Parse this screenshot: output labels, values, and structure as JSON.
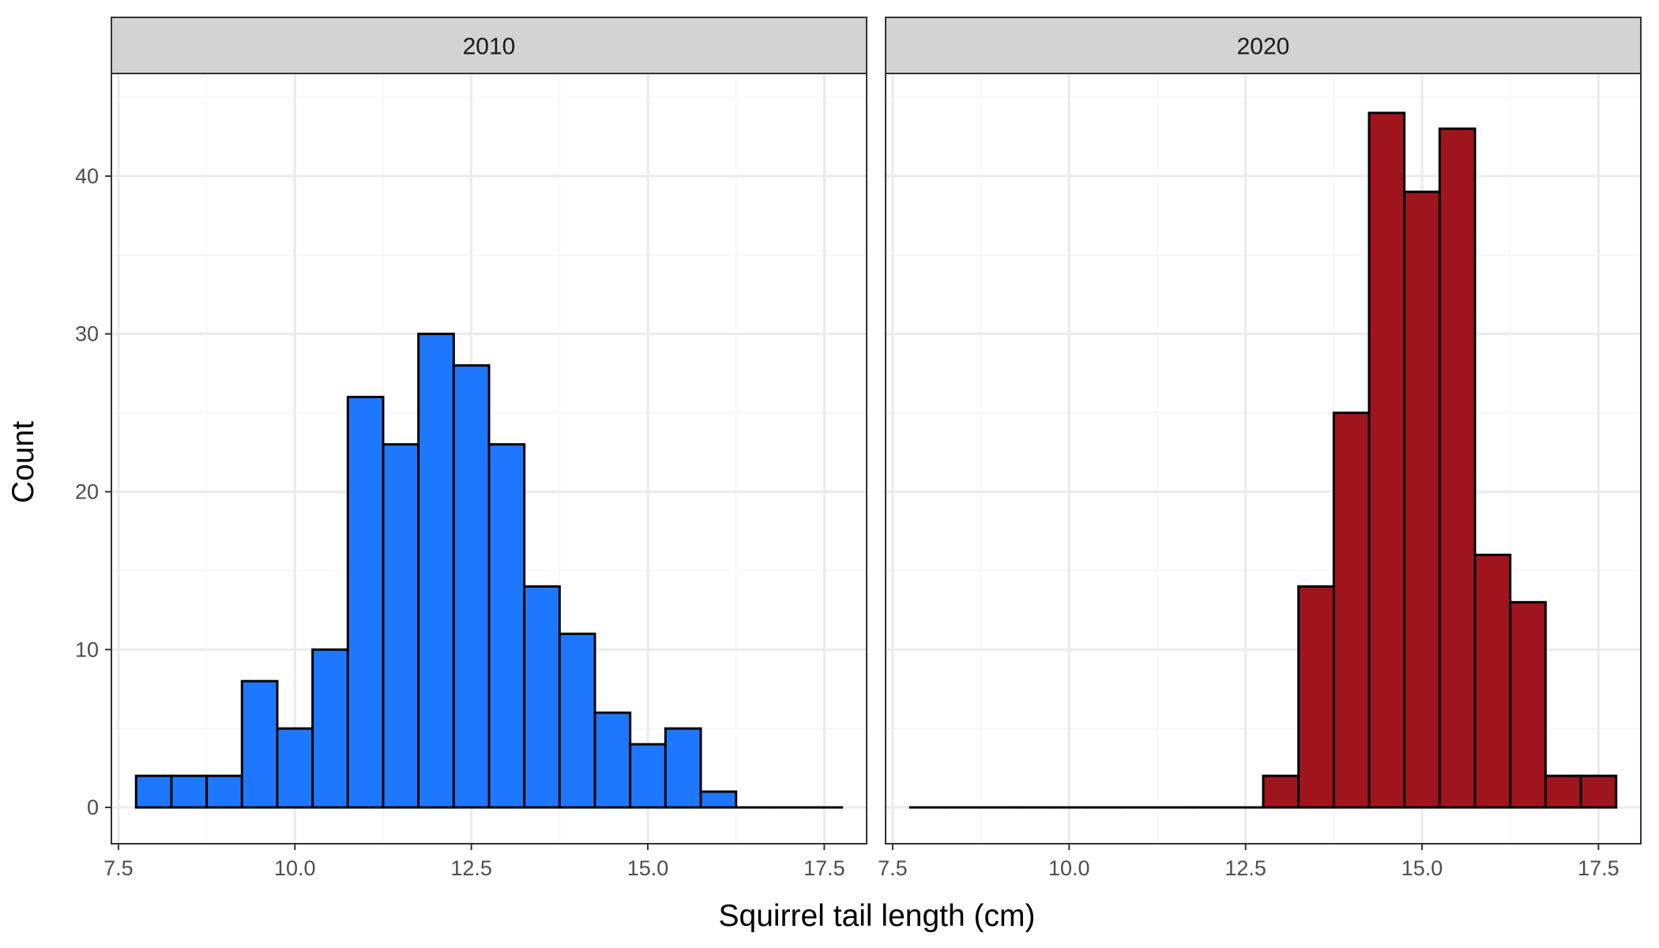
{
  "chart_data": {
    "type": "bar",
    "subtype": "faceted histogram",
    "xlabel": "Squirrel tail length (cm)",
    "ylabel": "Count",
    "xlim": [
      7.4,
      18.1
    ],
    "ylim": [
      -2.3,
      46.5
    ],
    "xticks": [
      7.5,
      10.0,
      12.5,
      15.0,
      17.5
    ],
    "xtick_labels": [
      "7.5",
      "10.0",
      "12.5",
      "15.0",
      "17.5"
    ],
    "yticks": [
      0,
      10,
      20,
      30,
      40
    ],
    "ytick_labels": [
      "0",
      "10",
      "20",
      "30",
      "40"
    ],
    "grid": true,
    "bin_width": 0.5,
    "bin_edges": [
      7.75,
      8.25,
      8.75,
      9.25,
      9.75,
      10.25,
      10.75,
      11.25,
      11.75,
      12.25,
      12.75,
      13.25,
      13.75,
      14.25,
      14.75,
      15.25,
      15.75,
      16.25,
      16.75,
      17.25,
      17.75
    ],
    "bin_centers": [
      8.0,
      8.5,
      9.0,
      9.5,
      10.0,
      10.5,
      11.0,
      11.5,
      12.0,
      12.5,
      13.0,
      13.5,
      14.0,
      14.5,
      15.0,
      15.5,
      16.0,
      16.5,
      17.0,
      17.5
    ],
    "panels": [
      {
        "name": "2010",
        "fill": "#1e78ff",
        "values": [
          2,
          2,
          2,
          8,
          5,
          10,
          26,
          23,
          30,
          28,
          23,
          14,
          11,
          6,
          4,
          5,
          1,
          0,
          0,
          0
        ]
      },
      {
        "name": "2020",
        "fill": "#a0141e",
        "values": [
          0,
          0,
          0,
          0,
          0,
          0,
          0,
          0,
          0,
          0,
          2,
          14,
          25,
          44,
          39,
          43,
          16,
          13,
          2,
          2
        ]
      }
    ],
    "colors": {
      "strip_background": "#d3d3d3",
      "panel_border": "#333333",
      "grid_major": "#ebebeb",
      "grid_minor": "#f5f5f5",
      "bar_outline": "#000000"
    }
  }
}
